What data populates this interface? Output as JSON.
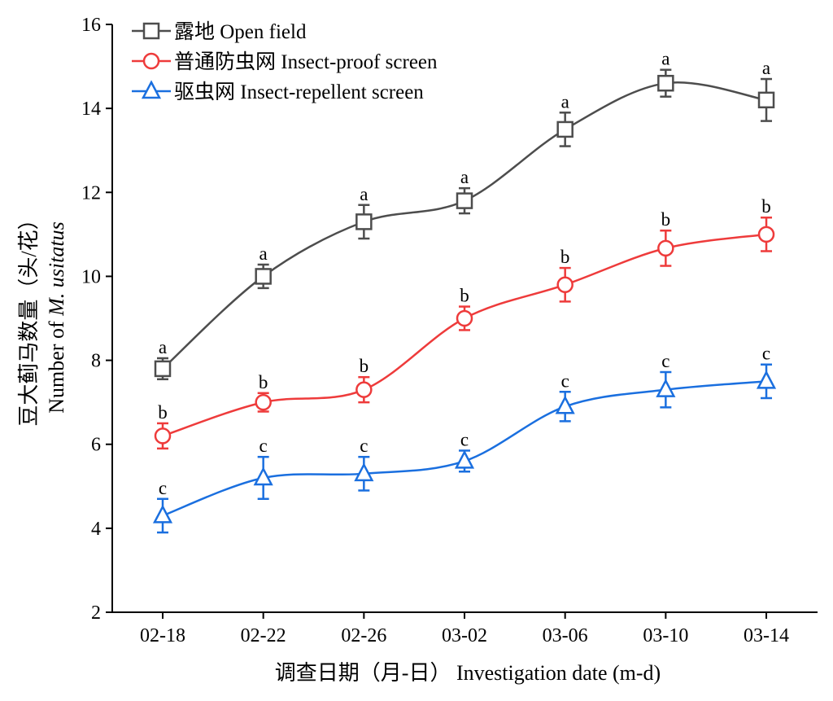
{
  "chart_data": {
    "type": "line",
    "title": "",
    "xlabel": "调查日期（月-日） Investigation date (m-d)",
    "ylabel_cn": "豆大蓟马数量（头/花）",
    "ylabel_en_prefix": "Number of ",
    "ylabel_en_species": "M. usitatus",
    "ylim": [
      2,
      16
    ],
    "yticks": [
      "2",
      "4",
      "6",
      "8",
      "10",
      "12",
      "14",
      "16"
    ],
    "categories": [
      "02-18",
      "02-22",
      "02-26",
      "03-02",
      "03-06",
      "03-10",
      "03-14"
    ],
    "legend_position": "top-left",
    "grid": false,
    "series": [
      {
        "name": "露地 Open field",
        "color": "#4d4d4d",
        "marker": "square",
        "values": [
          7.8,
          10.0,
          11.3,
          11.8,
          13.5,
          14.6,
          14.2
        ],
        "errors": [
          0.25,
          0.28,
          0.4,
          0.3,
          0.4,
          0.32,
          0.5
        ],
        "letters": [
          "a",
          "a",
          "a",
          "a",
          "a",
          "a",
          "a"
        ]
      },
      {
        "name": "普通防虫网 Insect-proof screen",
        "color": "#ee3b3b",
        "marker": "circle",
        "values": [
          6.2,
          7.0,
          7.3,
          9.0,
          9.8,
          10.67,
          11.0
        ],
        "errors": [
          0.3,
          0.22,
          0.3,
          0.28,
          0.4,
          0.42,
          0.4
        ],
        "letters": [
          "b",
          "b",
          "b",
          "b",
          "b",
          "b",
          "b"
        ]
      },
      {
        "name": "驱虫网 Insect-repellent screen",
        "color": "#1a6fdf",
        "marker": "triangle",
        "values": [
          4.3,
          5.2,
          5.3,
          5.6,
          6.9,
          7.3,
          7.5
        ],
        "errors": [
          0.4,
          0.5,
          0.4,
          0.25,
          0.35,
          0.42,
          0.4
        ],
        "letters": [
          "c",
          "c",
          "c",
          "c",
          "c",
          "c",
          "c"
        ]
      }
    ]
  }
}
